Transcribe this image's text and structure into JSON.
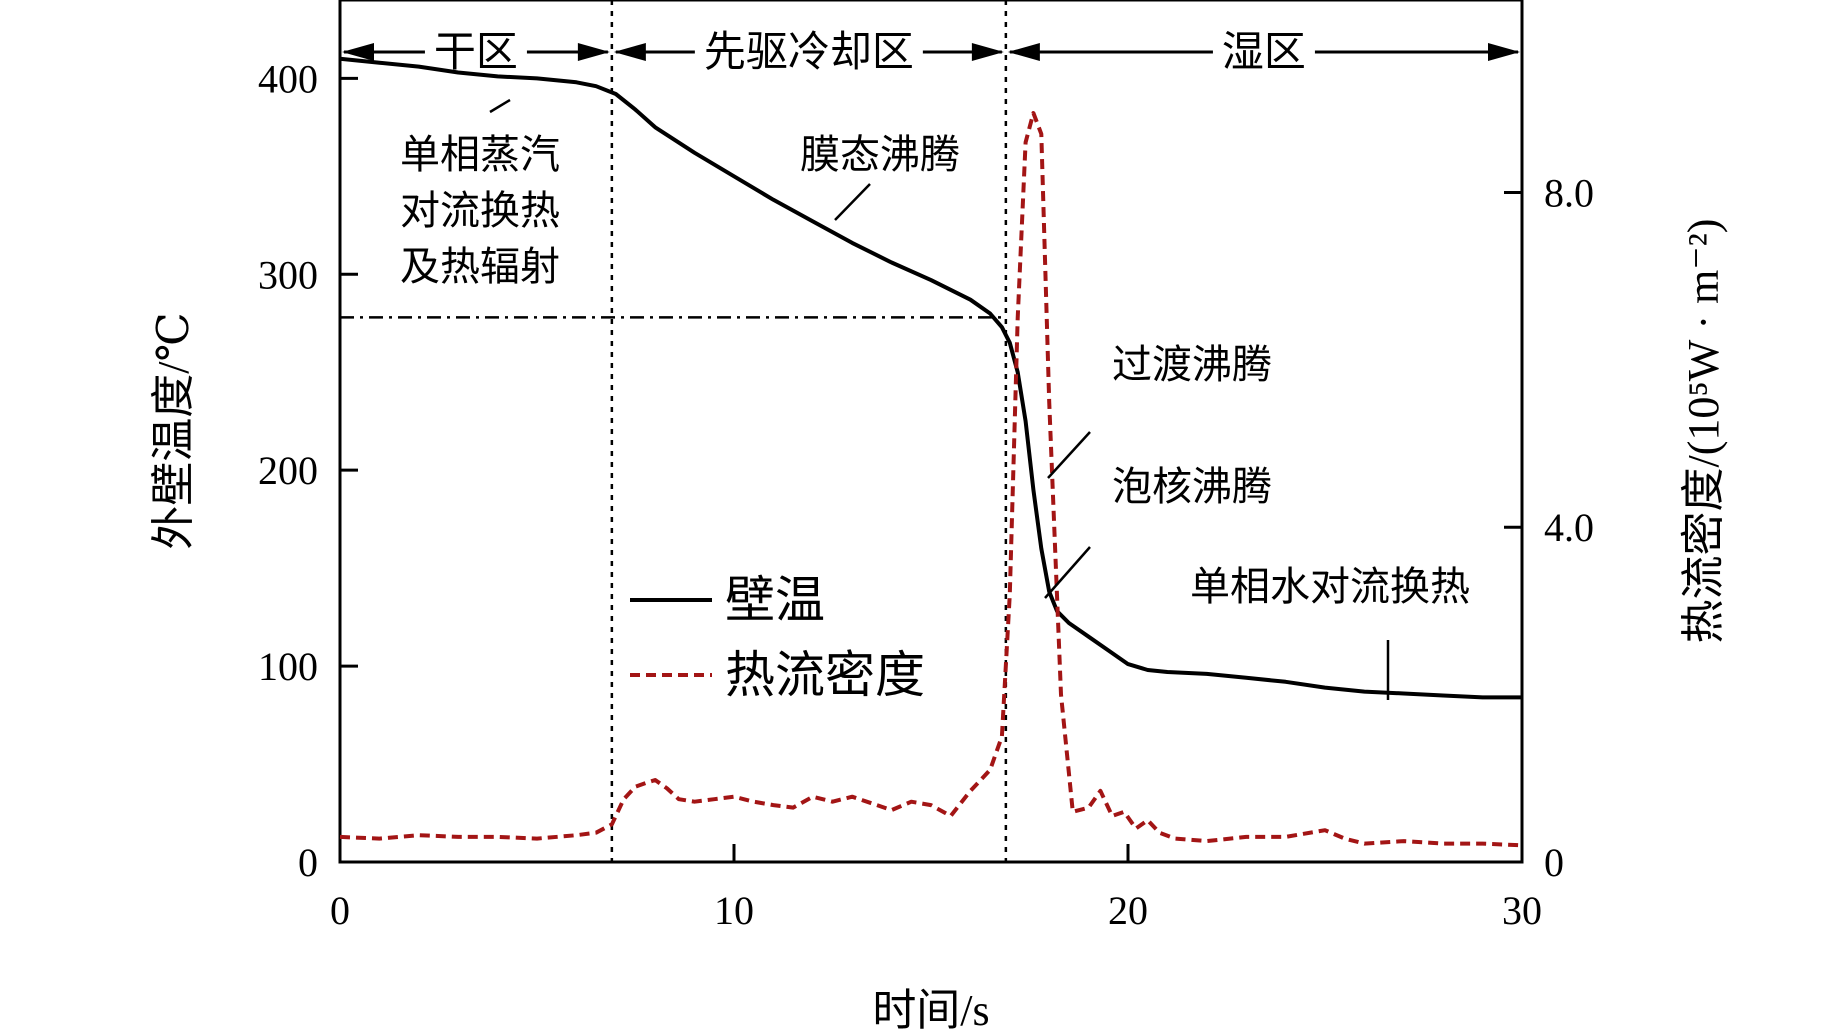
{
  "chart_data": {
    "type": "line",
    "xlabel": "时间/s",
    "ylabel_left": "外壁温度/℃",
    "ylabel_right": "热流密度/(10⁵W · m⁻²)",
    "xlim": [
      0,
      30
    ],
    "ylim_left": [
      0,
      440
    ],
    "ylim_right": [
      0,
      10.3
    ],
    "x_ticks": [
      "0",
      "10",
      "20",
      "30"
    ],
    "y_ticks_left": [
      "0",
      "100",
      "200",
      "300",
      "400"
    ],
    "y_ticks_right": [
      "0",
      "4.0",
      "8.0"
    ],
    "regions": [
      {
        "label": "干区",
        "x_start": 0,
        "x_end": 6.9
      },
      {
        "label": "先驱冷却区",
        "x_start": 6.9,
        "x_end": 16.9
      },
      {
        "label": "湿区",
        "x_start": 16.9,
        "x_end": 30
      }
    ],
    "reference_line_temperature": 278,
    "series": [
      {
        "name": "壁温",
        "axis": "left",
        "color": "#000000",
        "style": "solid",
        "x": [
          0,
          1,
          2,
          3,
          4,
          5,
          6,
          6.5,
          7,
          7.5,
          8,
          9,
          10,
          11,
          12,
          13,
          14,
          15,
          16,
          16.5,
          16.8,
          17,
          17.2,
          17.4,
          17.6,
          17.8,
          18,
          18.2,
          18.5,
          19,
          19.5,
          20,
          20.5,
          21,
          22,
          23,
          24,
          25,
          26,
          27,
          28,
          29,
          30
        ],
        "y": [
          410,
          408,
          406,
          403,
          401,
          400,
          398,
          396,
          392,
          384,
          375,
          362,
          350,
          338,
          327,
          316,
          306,
          297,
          287,
          280,
          273,
          265,
          250,
          225,
          190,
          160,
          138,
          128,
          122,
          115,
          108,
          101,
          98,
          97,
          96,
          94,
          92,
          89,
          87,
          86,
          85,
          84,
          84
        ]
      },
      {
        "name": "热流密度",
        "axis": "right",
        "color": "#a31515",
        "style": "dashed",
        "x": [
          0,
          1,
          2,
          3,
          4,
          5,
          6,
          6.5,
          6.9,
          7.2,
          7.5,
          7.8,
          8.0,
          8.3,
          8.6,
          9,
          9.5,
          10,
          10.5,
          11,
          11.5,
          12,
          12.5,
          13,
          13.5,
          14,
          14.5,
          15,
          15.5,
          16,
          16.5,
          16.8,
          17,
          17.2,
          17.4,
          17.6,
          17.8,
          18,
          18.3,
          18.6,
          19,
          19.3,
          19.6,
          19.9,
          20.2,
          20.5,
          20.8,
          21.2,
          22,
          23,
          24,
          25,
          25.5,
          26,
          27,
          28,
          29,
          30
        ],
        "y": [
          0.3,
          0.28,
          0.32,
          0.3,
          0.3,
          0.28,
          0.32,
          0.35,
          0.45,
          0.75,
          0.9,
          0.95,
          0.98,
          0.88,
          0.75,
          0.72,
          0.75,
          0.78,
          0.72,
          0.68,
          0.65,
          0.78,
          0.72,
          0.78,
          0.7,
          0.62,
          0.72,
          0.68,
          0.55,
          0.85,
          1.1,
          1.5,
          3.2,
          6.5,
          8.6,
          8.95,
          8.7,
          5.5,
          2.0,
          0.6,
          0.65,
          0.85,
          0.55,
          0.6,
          0.4,
          0.5,
          0.35,
          0.28,
          0.25,
          0.3,
          0.3,
          0.38,
          0.28,
          0.22,
          0.25,
          0.22,
          0.22,
          0.2
        ]
      }
    ],
    "annotations": [
      {
        "lines": [
          "单相蒸汽",
          "对流换热",
          "及热辐射"
        ]
      },
      {
        "lines": [
          "膜态沸腾"
        ]
      },
      {
        "lines": [
          "过渡沸腾"
        ]
      },
      {
        "lines": [
          "泡核沸腾"
        ]
      },
      {
        "lines": [
          "单相水对流换热"
        ]
      }
    ],
    "legend": {
      "placement": "center"
    }
  }
}
